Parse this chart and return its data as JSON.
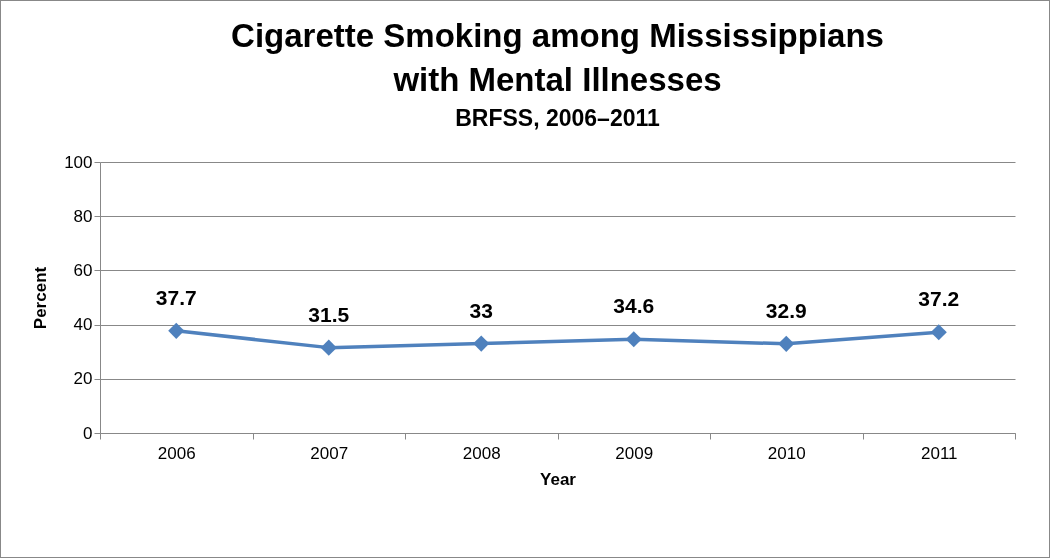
{
  "chart_data": {
    "type": "line",
    "title": [
      "Cigarette Smoking among Mississippians",
      "with Mental Illnesses"
    ],
    "subtitle": "BRFSS, 2006–2011",
    "xlabel": "Year",
    "ylabel": "Percent",
    "categories": [
      "2006",
      "2007",
      "2008",
      "2009",
      "2010",
      "2011"
    ],
    "series": [
      {
        "color": "#4f81bd",
        "values": [
          37.7,
          31.5,
          33,
          34.6,
          32.9,
          37.2
        ]
      }
    ],
    "ylim": [
      0,
      100
    ],
    "yticks": [
      0,
      20,
      40,
      60,
      80,
      100
    ],
    "grid": "y",
    "marker": "diamond",
    "line_style": "solid",
    "data_labels": true
  }
}
